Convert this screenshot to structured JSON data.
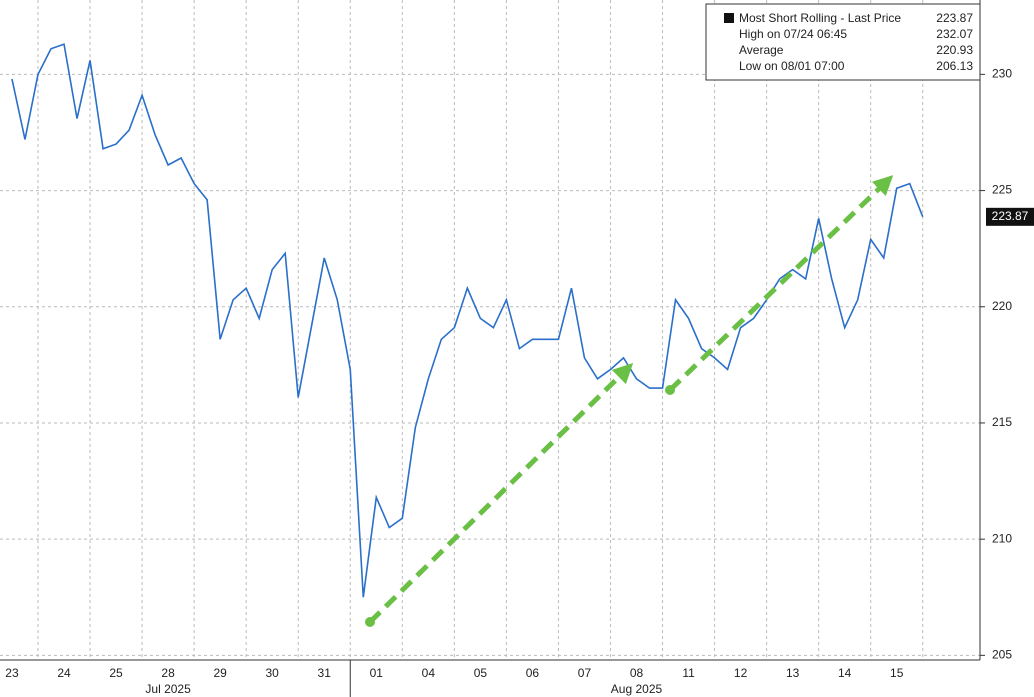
{
  "chart_data": {
    "type": "line",
    "series": [
      {
        "name": "Most Short Rolling - Last Price",
        "color": "#2a6fc9",
        "values": [
          229.8,
          227.2,
          230,
          231.1,
          231.3,
          228.1,
          230.6,
          226.8,
          227,
          227.6,
          229.1,
          227.4,
          226.1,
          226.4,
          225.3,
          224.6,
          218.6,
          220.3,
          220.8,
          219.5,
          221.6,
          222.3,
          216.1,
          219.1,
          222.1,
          220.3,
          217.3,
          207.5,
          211.8,
          210.5,
          210.9,
          214.8,
          216.9,
          218.6,
          219.1,
          220.8,
          219.5,
          219.1,
          220.3,
          218.2,
          218.6,
          218.6,
          218.6,
          220.8,
          217.8,
          216.9,
          217.3,
          217.8,
          216.9,
          216.5,
          216.5,
          220.3,
          219.5,
          218.2,
          217.8,
          217.3,
          219.1,
          219.5,
          220.3,
          221.2,
          221.6,
          221.2,
          223.8,
          221.2,
          219.1,
          220.3,
          222.9,
          222.1,
          225.1,
          225.3,
          223.87
        ]
      }
    ],
    "x": [
      0,
      0.25,
      0.5,
      0.75,
      1,
      1.25,
      1.5,
      1.75,
      2,
      2.25,
      2.5,
      2.75,
      3,
      3.25,
      3.5,
      3.75,
      4,
      4.25,
      4.5,
      4.75,
      5,
      5.25,
      5.5,
      5.75,
      6,
      6.25,
      6.5,
      6.75,
      7,
      7.25,
      7.5,
      7.75,
      8,
      8.25,
      8.5,
      8.75,
      9,
      9.25,
      9.5,
      9.75,
      10,
      10.25,
      10.5,
      10.75,
      11,
      11.25,
      11.5,
      11.75,
      12,
      12.25,
      12.5,
      12.75,
      13,
      13.25,
      13.5,
      13.75,
      14,
      14.25,
      14.5,
      14.75,
      15,
      15.25,
      15.5,
      15.75,
      16,
      16.25,
      16.5,
      16.75,
      17,
      17.25,
      17.5
    ],
    "xlim": [
      -0.23,
      18.6
    ],
    "xticks": [
      {
        "value": 0,
        "label": "23"
      },
      {
        "value": 1,
        "label": "24"
      },
      {
        "value": 2,
        "label": "25"
      },
      {
        "value": 3,
        "label": "28"
      },
      {
        "value": 4,
        "label": "29"
      },
      {
        "value": 5,
        "label": "30"
      },
      {
        "value": 6,
        "label": "31"
      },
      {
        "value": 7,
        "label": "01"
      },
      {
        "value": 8,
        "label": "04"
      },
      {
        "value": 9,
        "label": "05"
      },
      {
        "value": 10,
        "label": "06"
      },
      {
        "value": 11,
        "label": "07"
      },
      {
        "value": 12,
        "label": "08"
      },
      {
        "value": 13,
        "label": "11"
      },
      {
        "value": 14,
        "label": "12"
      },
      {
        "value": 15,
        "label": "13"
      },
      {
        "value": 16,
        "label": "14"
      },
      {
        "value": 17,
        "label": "15"
      }
    ],
    "month_labels": [
      {
        "value": 3,
        "label": "Jul 2025"
      },
      {
        "value": 12,
        "label": "Aug 2025"
      }
    ],
    "ylim": [
      204.8,
      233.2
    ],
    "yticks": [
      205,
      210,
      215,
      220,
      225,
      230
    ],
    "grid": true,
    "legend": [
      {
        "label": "Most Short Rolling - Last Price",
        "value": 223.87
      },
      {
        "label": "High on 07/24 06:45",
        "value": 232.07
      },
      {
        "label": "Average",
        "value": 220.93
      },
      {
        "label": "Low on 08/01 07:00",
        "value": 206.13
      }
    ]
  }
}
